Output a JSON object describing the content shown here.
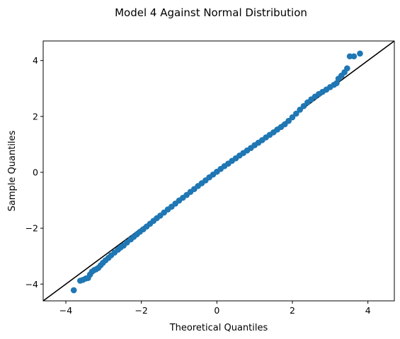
{
  "chart_data": {
    "type": "scatter",
    "title": "Model 4 Against Normal Distribution",
    "xlabel": "Theoretical Quantiles",
    "ylabel": "Sample Quantiles",
    "xlim": [
      -4.6,
      4.7
    ],
    "ylim": [
      -4.6,
      4.7
    ],
    "xticks": [
      -4,
      -2,
      0,
      2,
      4
    ],
    "yticks": [
      -4,
      -2,
      0,
      2,
      4
    ],
    "xtick_labels": [
      "−4",
      "−2",
      "0",
      "2",
      "4"
    ],
    "ytick_labels": [
      "−4",
      "−2",
      "0",
      "2",
      "4"
    ],
    "grid": false,
    "colors": {
      "points": "#1f77b4",
      "reference_line": "#000000"
    },
    "reference_line": {
      "x": [
        -4.6,
        4.7
      ],
      "y": [
        -4.6,
        4.7
      ]
    },
    "series": [
      {
        "points": [
          [
            -3.79,
            -4.22
          ],
          [
            -3.62,
            -3.88
          ],
          [
            -3.55,
            -3.85
          ],
          [
            -3.47,
            -3.8
          ],
          [
            -3.41,
            -3.78
          ],
          [
            -3.36,
            -3.66
          ],
          [
            -3.31,
            -3.56
          ],
          [
            -3.25,
            -3.5
          ],
          [
            -3.2,
            -3.47
          ],
          [
            -3.14,
            -3.42
          ],
          [
            -3.08,
            -3.33
          ],
          [
            -3.02,
            -3.24
          ],
          [
            -2.95,
            -3.15
          ],
          [
            -2.87,
            -3.06
          ],
          [
            -2.8,
            -2.97
          ],
          [
            -2.71,
            -2.87
          ],
          [
            -2.62,
            -2.77
          ],
          [
            -2.55,
            -2.69
          ],
          [
            -2.47,
            -2.62
          ],
          [
            -2.38,
            -2.51
          ],
          [
            -2.28,
            -2.4
          ],
          [
            -2.2,
            -2.31
          ],
          [
            -2.12,
            -2.22
          ],
          [
            -2.04,
            -2.13
          ],
          [
            -1.95,
            -2.04
          ],
          [
            -1.86,
            -1.94
          ],
          [
            -1.77,
            -1.84
          ],
          [
            -1.68,
            -1.74
          ],
          [
            -1.59,
            -1.64
          ],
          [
            -1.5,
            -1.55
          ],
          [
            -1.4,
            -1.44
          ],
          [
            -1.3,
            -1.33
          ],
          [
            -1.2,
            -1.23
          ],
          [
            -1.1,
            -1.12
          ],
          [
            -1.0,
            -1.01
          ],
          [
            -0.9,
            -0.91
          ],
          [
            -0.8,
            -0.81
          ],
          [
            -0.7,
            -0.7
          ],
          [
            -0.6,
            -0.6
          ],
          [
            -0.5,
            -0.49
          ],
          [
            -0.4,
            -0.39
          ],
          [
            -0.3,
            -0.29
          ],
          [
            -0.2,
            -0.18
          ],
          [
            -0.1,
            -0.08
          ],
          [
            0.0,
            0.02
          ],
          [
            0.1,
            0.12
          ],
          [
            0.2,
            0.22
          ],
          [
            0.3,
            0.31
          ],
          [
            0.4,
            0.41
          ],
          [
            0.5,
            0.5
          ],
          [
            0.6,
            0.6
          ],
          [
            0.7,
            0.69
          ],
          [
            0.8,
            0.78
          ],
          [
            0.9,
            0.87
          ],
          [
            1.0,
            0.97
          ],
          [
            1.1,
            1.06
          ],
          [
            1.2,
            1.15
          ],
          [
            1.3,
            1.25
          ],
          [
            1.4,
            1.34
          ],
          [
            1.5,
            1.43
          ],
          [
            1.6,
            1.53
          ],
          [
            1.7,
            1.62
          ],
          [
            1.8,
            1.72
          ],
          [
            1.9,
            1.84
          ],
          [
            2.0,
            1.97
          ],
          [
            2.1,
            2.1
          ],
          [
            2.2,
            2.24
          ],
          [
            2.3,
            2.37
          ],
          [
            2.4,
            2.5
          ],
          [
            2.5,
            2.61
          ],
          [
            2.6,
            2.71
          ],
          [
            2.7,
            2.8
          ],
          [
            2.8,
            2.88
          ],
          [
            2.9,
            2.96
          ],
          [
            3.0,
            3.05
          ],
          [
            3.1,
            3.13
          ],
          [
            3.17,
            3.19
          ],
          [
            3.22,
            3.35
          ],
          [
            3.3,
            3.46
          ],
          [
            3.38,
            3.58
          ],
          [
            3.45,
            3.72
          ],
          [
            3.52,
            4.15
          ],
          [
            3.63,
            4.15
          ],
          [
            3.79,
            4.25
          ]
        ]
      }
    ]
  }
}
